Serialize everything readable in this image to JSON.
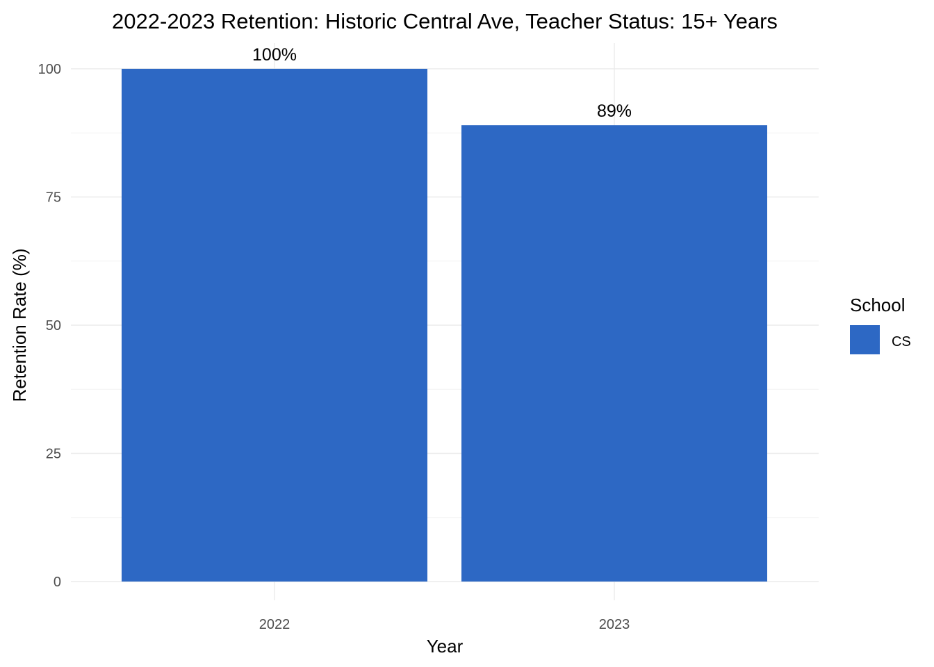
{
  "chart_data": {
    "type": "bar",
    "title": "2022-2023 Retention: Historic Central Ave, Teacher Status: 15+ Years",
    "xlabel": "Year",
    "ylabel": "Retention Rate (%)",
    "categories": [
      "2022",
      "2023"
    ],
    "series": [
      {
        "name": "CS",
        "values": [
          100,
          89
        ],
        "color": "#2d68c4"
      }
    ],
    "data_labels": [
      "100%",
      "89%"
    ],
    "ylim": [
      0,
      105
    ],
    "yticks": [
      0,
      25,
      50,
      75,
      100
    ],
    "ytick_labels": [
      "0",
      "25",
      "50",
      "75",
      "100"
    ],
    "grid": true,
    "legend": {
      "title": "School",
      "position": "right"
    }
  }
}
